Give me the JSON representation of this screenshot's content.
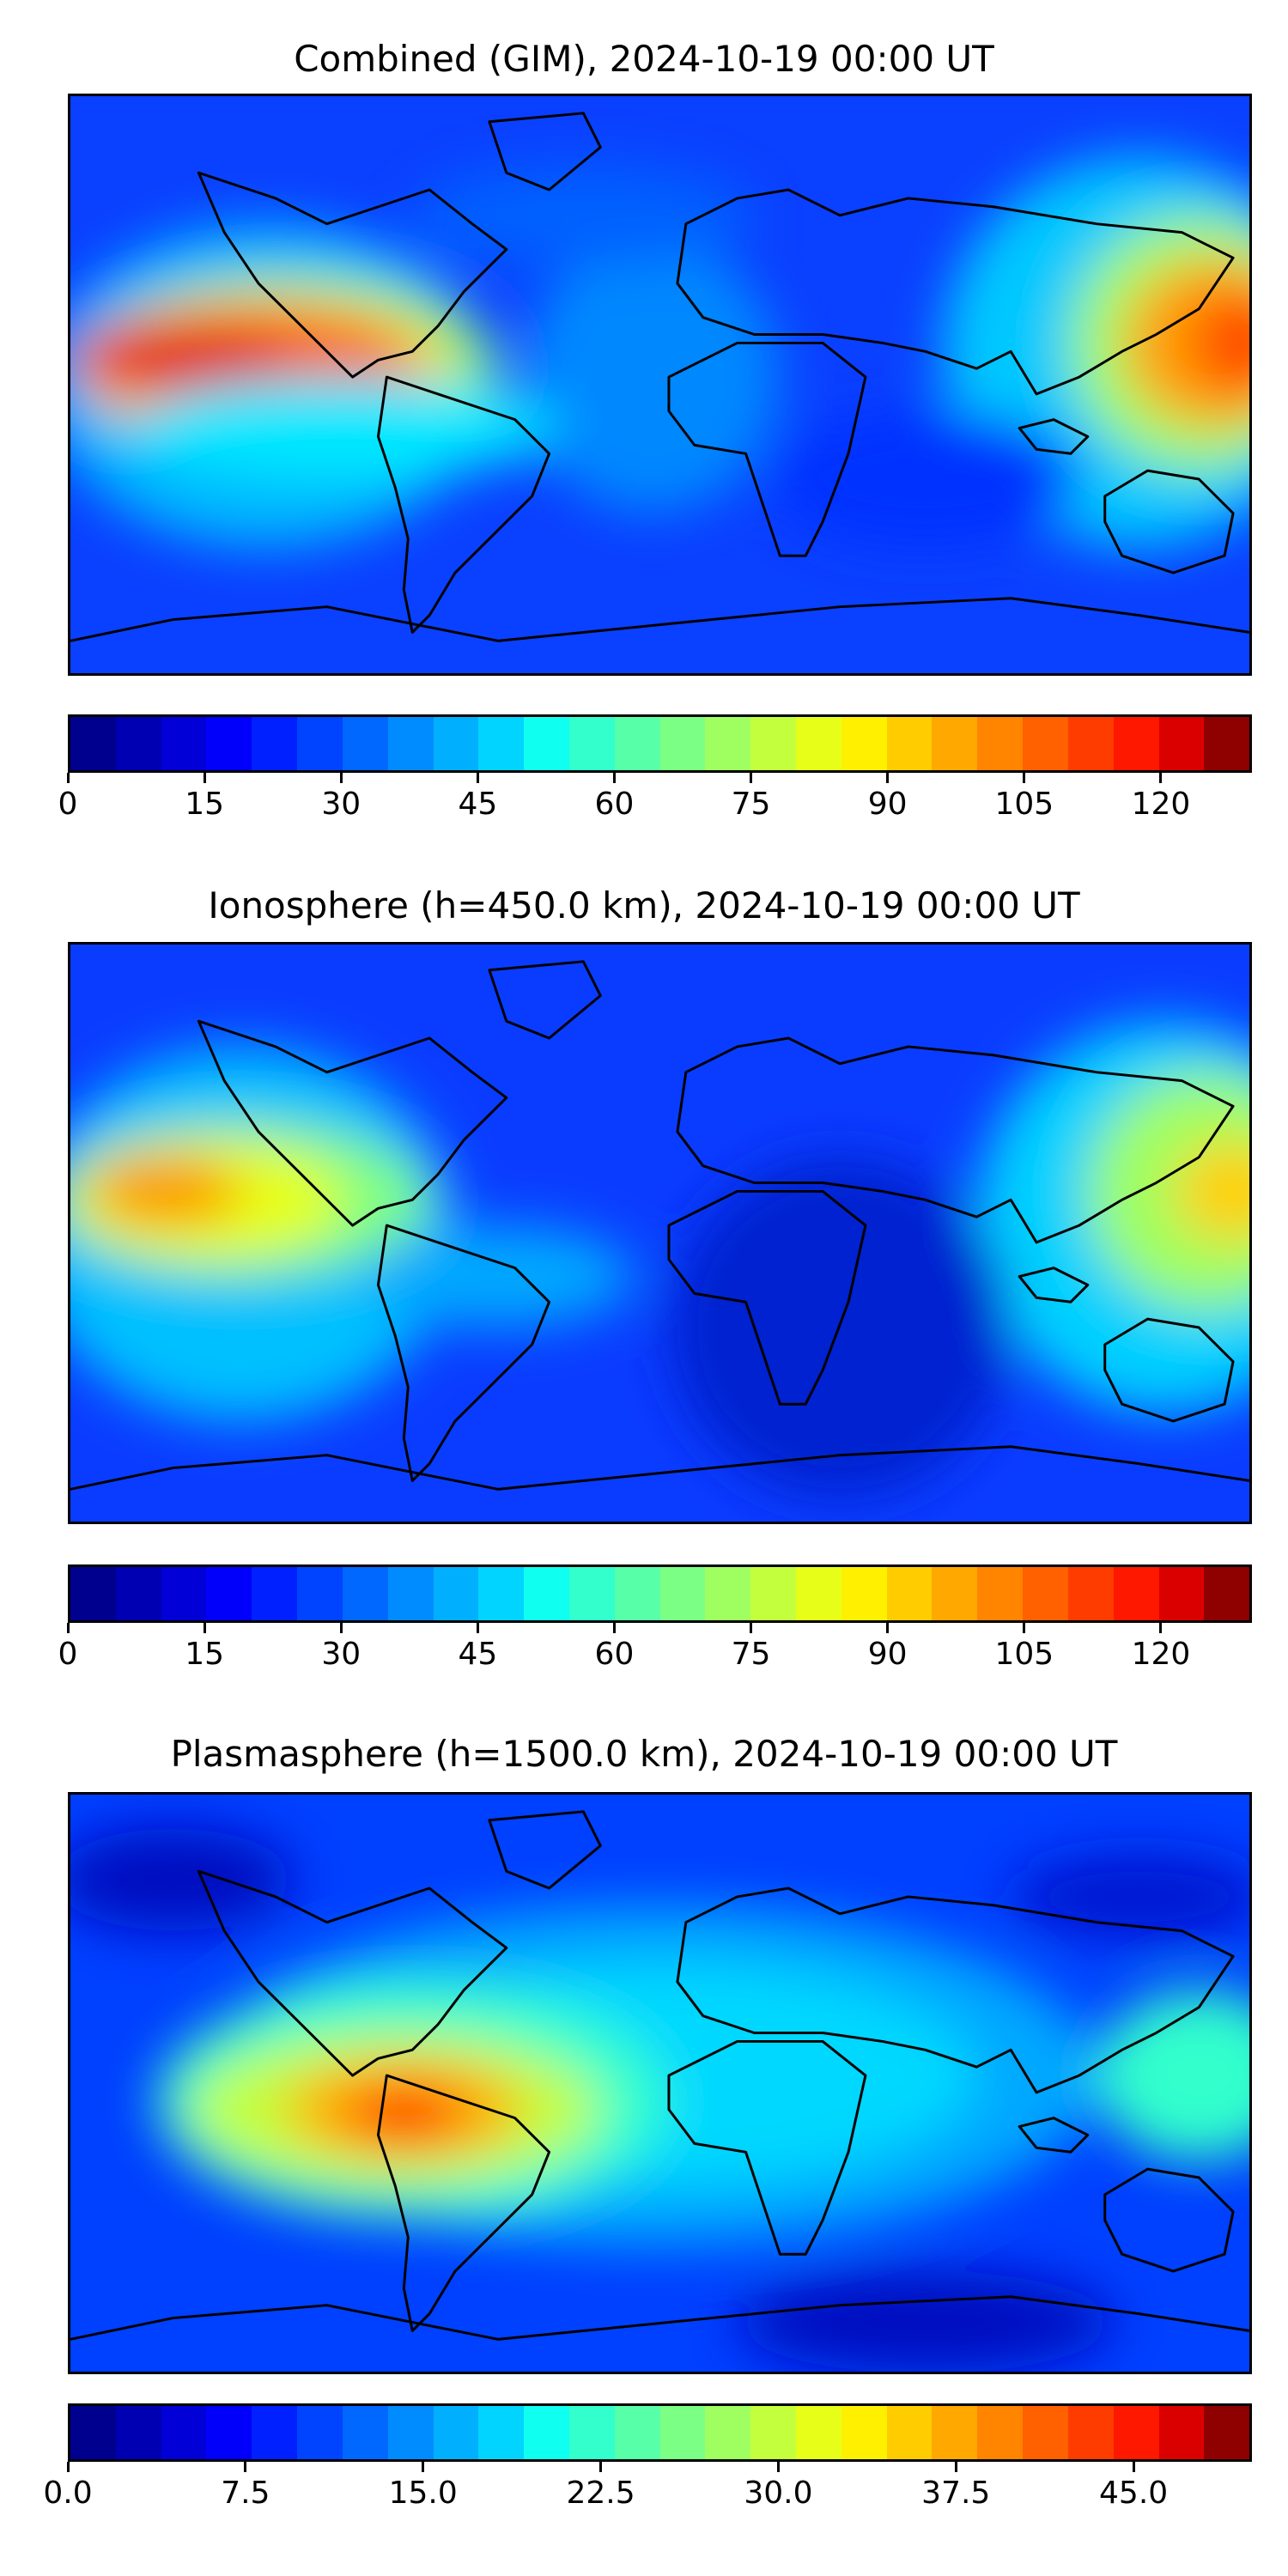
{
  "panels": [
    {
      "title": "Combined (GIM), 2024-10-19 00:00 UT",
      "colorbar": {
        "ticks": [
          "0",
          "15",
          "30",
          "45",
          "60",
          "75",
          "90",
          "105",
          "120"
        ],
        "tick_values": [
          0,
          15,
          30,
          45,
          60,
          75,
          90,
          105,
          120
        ],
        "range": [
          0,
          130
        ]
      }
    },
    {
      "title": "Ionosphere  (h=450.0 km), 2024-10-19 00:00 UT",
      "colorbar": {
        "ticks": [
          "0",
          "15",
          "30",
          "45",
          "60",
          "75",
          "90",
          "105",
          "120"
        ],
        "tick_values": [
          0,
          15,
          30,
          45,
          60,
          75,
          90,
          105,
          120
        ],
        "range": [
          0,
          130
        ]
      }
    },
    {
      "title": "Plasmasphere (h=1500.0 km), 2024-10-19 00:00 UT",
      "colorbar": {
        "ticks": [
          "0.0",
          "7.5",
          "15.0",
          "22.5",
          "30.0",
          "37.5",
          "45.0"
        ],
        "tick_values": [
          0,
          7.5,
          15,
          22.5,
          30,
          37.5,
          45
        ],
        "range": [
          0,
          50
        ]
      }
    }
  ],
  "colormap": "jet",
  "colorbar_levels": 26,
  "colorbar_colors": [
    "#00008f",
    "#0000b3",
    "#0000d7",
    "#0000fb",
    "#0020ff",
    "#0044ff",
    "#0068ff",
    "#008cff",
    "#00b0ff",
    "#00d4ff",
    "#0ffff0",
    "#33ffcc",
    "#57ffa8",
    "#7bff84",
    "#9fff60",
    "#c3ff3c",
    "#e7ff18",
    "#fff000",
    "#ffcc00",
    "#ffa800",
    "#ff8400",
    "#ff6000",
    "#ff3c00",
    "#ff1800",
    "#db0000",
    "#8f0000"
  ],
  "coastline_color": "#000000"
}
